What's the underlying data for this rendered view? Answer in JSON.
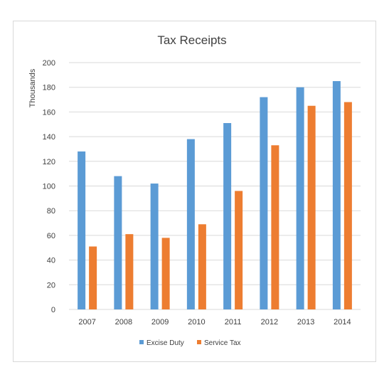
{
  "chart_data": {
    "type": "bar",
    "title": "Tax Receipts",
    "xlabel": "",
    "ylabel": "Thousands",
    "ylim": [
      0,
      200
    ],
    "yticks": [
      0,
      20,
      40,
      60,
      80,
      100,
      120,
      140,
      160,
      180,
      200
    ],
    "categories": [
      "2007",
      "2008",
      "2009",
      "2010",
      "2011",
      "2012",
      "2013",
      "2014"
    ],
    "series": [
      {
        "name": "Excise Duty",
        "color": "#5B9BD5",
        "values": [
          128,
          108,
          102,
          138,
          151,
          172,
          180,
          185
        ]
      },
      {
        "name": "Service Tax",
        "color": "#ED7D31",
        "values": [
          51,
          61,
          58,
          69,
          96,
          133,
          165,
          168
        ]
      }
    ],
    "grid": true,
    "legend_position": "bottom"
  }
}
